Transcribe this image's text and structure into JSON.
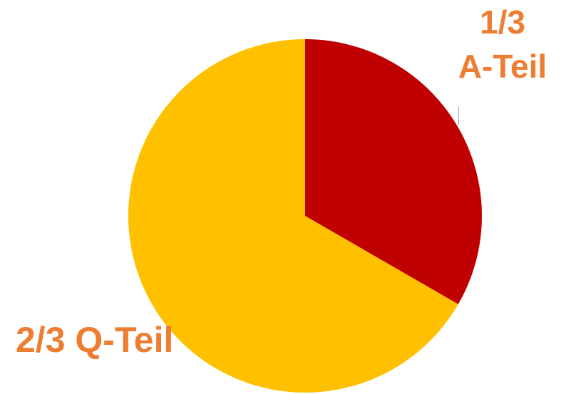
{
  "chart_data": {
    "type": "pie",
    "slices": [
      {
        "name": "A-Teil",
        "fraction_label": "1/3",
        "value": 1,
        "color": "#C00000"
      },
      {
        "name": "Q-Teil",
        "fraction_label": "2/3",
        "value": 2,
        "color": "#FFC000"
      }
    ],
    "total": 3,
    "start_angle": "12 o'clock",
    "direction": "clockwise",
    "labels": {
      "a_fraction": "1/3",
      "a_name": "A-Teil",
      "q_text": "2/3 Q-Teil"
    },
    "label_color": "#ED7D31"
  }
}
